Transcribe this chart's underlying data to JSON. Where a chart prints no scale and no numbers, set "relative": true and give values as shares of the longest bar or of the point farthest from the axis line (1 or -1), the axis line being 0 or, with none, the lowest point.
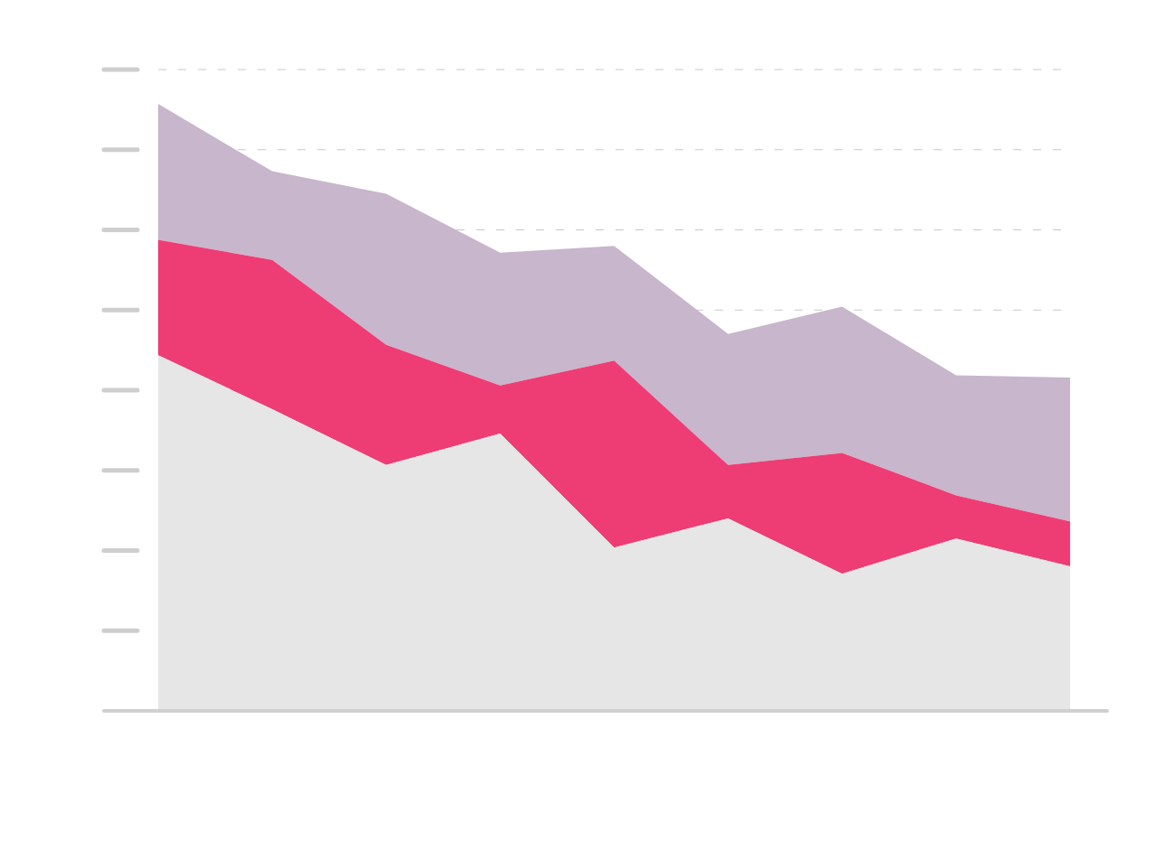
{
  "chart_data": {
    "type": "area",
    "stacked": true,
    "relative": true,
    "grid": "y",
    "categories": [
      null,
      null,
      null,
      null,
      null,
      null,
      null,
      null,
      null
    ],
    "series": [
      {
        "color": "#e6e6e6",
        "values": [
          0.586,
          0.497,
          0.405,
          0.457,
          0.269,
          0.317,
          0.226,
          0.284,
          0.238
        ]
      },
      {
        "color": "#ee3d74",
        "values": [
          0.19,
          0.246,
          0.198,
          0.079,
          0.308,
          0.088,
          0.199,
          0.071,
          0.074
        ]
      },
      {
        "color": "#c8b6cc",
        "values": [
          0.224,
          0.146,
          0.249,
          0.219,
          0.189,
          0.216,
          0.241,
          0.198,
          0.237
        ]
      }
    ]
  }
}
